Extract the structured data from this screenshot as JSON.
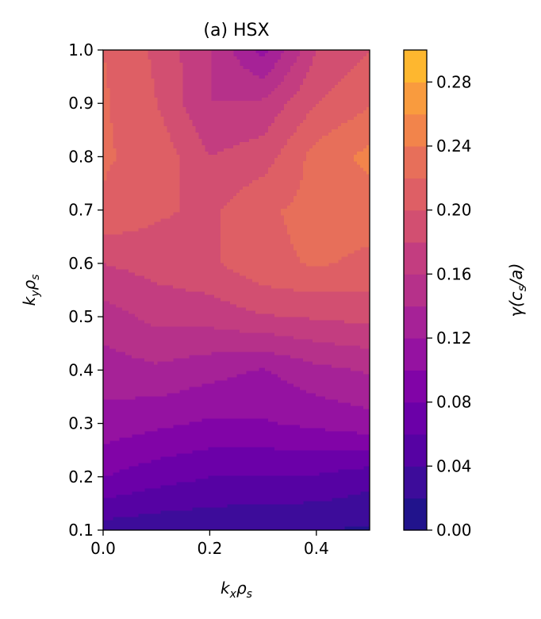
{
  "chart_data": {
    "type": "heatmap",
    "subtype": "filled-contour",
    "title": "(a) HSX",
    "xlabel_main": "k",
    "xlabel_sub": "x",
    "xlabel_main2": "ρ",
    "xlabel_sub2": "s",
    "ylabel_main": "k",
    "ylabel_sub": "y",
    "ylabel_main2": "ρ",
    "ylabel_sub2": "s",
    "xlim": [
      0.0,
      0.5
    ],
    "ylim": [
      0.1,
      1.0
    ],
    "x_ticks": [
      0.0,
      0.2,
      0.4
    ],
    "x_tick_labels": [
      "0.0",
      "0.2",
      "0.4"
    ],
    "y_ticks": [
      0.1,
      0.2,
      0.3,
      0.4,
      0.5,
      0.6,
      0.7,
      0.8,
      0.9,
      1.0
    ],
    "y_tick_labels": [
      "0.1",
      "0.2",
      "0.3",
      "0.4",
      "0.5",
      "0.6",
      "0.7",
      "0.8",
      "0.9",
      "1.0"
    ],
    "x": [
      0.0,
      0.1,
      0.2,
      0.3,
      0.4,
      0.5
    ],
    "y": [
      0.1,
      0.2,
      0.3,
      0.4,
      0.5,
      0.6,
      0.7,
      0.8,
      0.9,
      1.0
    ],
    "z": [
      [
        0.03,
        0.026,
        0.024,
        0.022,
        0.02,
        0.017
      ],
      [
        0.08,
        0.068,
        0.06,
        0.058,
        0.058,
        0.048
      ],
      [
        0.112,
        0.104,
        0.097,
        0.098,
        0.104,
        0.112
      ],
      [
        0.13,
        0.136,
        0.127,
        0.118,
        0.134,
        0.142
      ],
      [
        0.15,
        0.166,
        0.168,
        0.178,
        0.182,
        0.186
      ],
      [
        0.18,
        0.188,
        0.196,
        0.215,
        0.222,
        0.216
      ],
      [
        0.218,
        0.203,
        0.196,
        0.217,
        0.226,
        0.228
      ],
      [
        0.222,
        0.214,
        0.18,
        0.19,
        0.228,
        0.246
      ],
      [
        0.223,
        0.2,
        0.16,
        0.164,
        0.2,
        0.218
      ],
      [
        0.22,
        0.196,
        0.16,
        0.112,
        0.18,
        0.2
      ]
    ],
    "levels": [
      0.0,
      0.02,
      0.04,
      0.06,
      0.08,
      0.1,
      0.12,
      0.14,
      0.16,
      0.18,
      0.2,
      0.22,
      0.24,
      0.26,
      0.28,
      0.3
    ],
    "colormap": "plasma",
    "band_colors": [
      "#21138c",
      "#3d0c9a",
      "#5602a3",
      "#6b00a8",
      "#8104a7",
      "#9512a1",
      "#a62297",
      "#b6318a",
      "#c33d80",
      "#d24f71",
      "#de5f65",
      "#e76f5a",
      "#f2844b",
      "#f99b3e",
      "#feb72f",
      "#f7d13d"
    ],
    "colorbar": {
      "label_main": "γ(c",
      "label_sub": "s",
      "label_tail": "/a)",
      "range": [
        0.0,
        0.3
      ],
      "ticks": [
        0.0,
        0.04,
        0.08,
        0.12,
        0.16,
        0.2,
        0.24,
        0.28
      ],
      "tick_labels": [
        "0.00",
        "0.04",
        "0.08",
        "0.12",
        "0.16",
        "0.20",
        "0.24",
        "0.28"
      ]
    }
  }
}
